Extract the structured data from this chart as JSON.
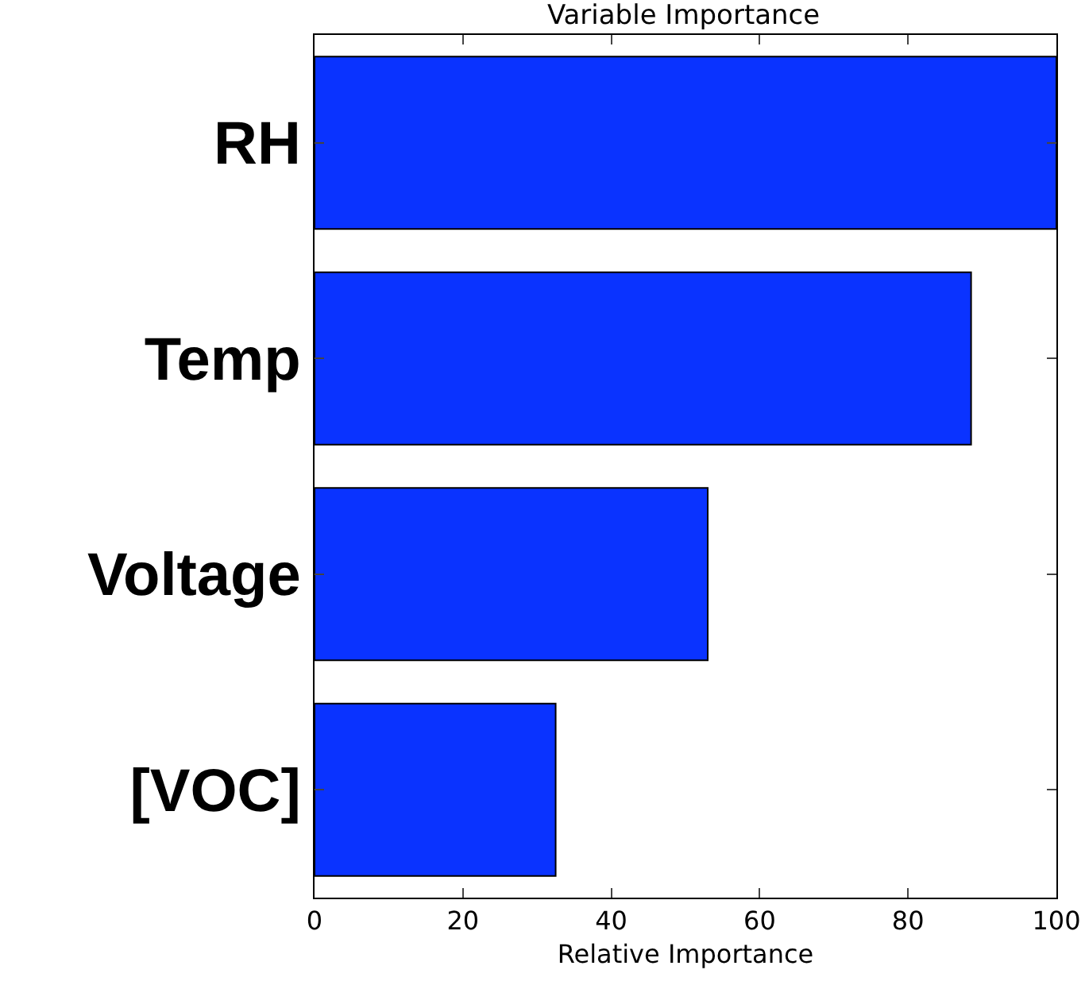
{
  "chart_data": {
    "type": "bar",
    "orientation": "horizontal",
    "title": "Variable Importance",
    "xlabel": "Relative Importance",
    "categories": [
      "RH",
      "Temp",
      "Voltage",
      "[VOC]"
    ],
    "values": [
      100,
      88.5,
      53,
      32.5
    ],
    "color": "#0a33ff",
    "xlim": [
      0,
      100
    ],
    "xticks": [
      0,
      20,
      40,
      60,
      80,
      100
    ],
    "grid": false
  }
}
